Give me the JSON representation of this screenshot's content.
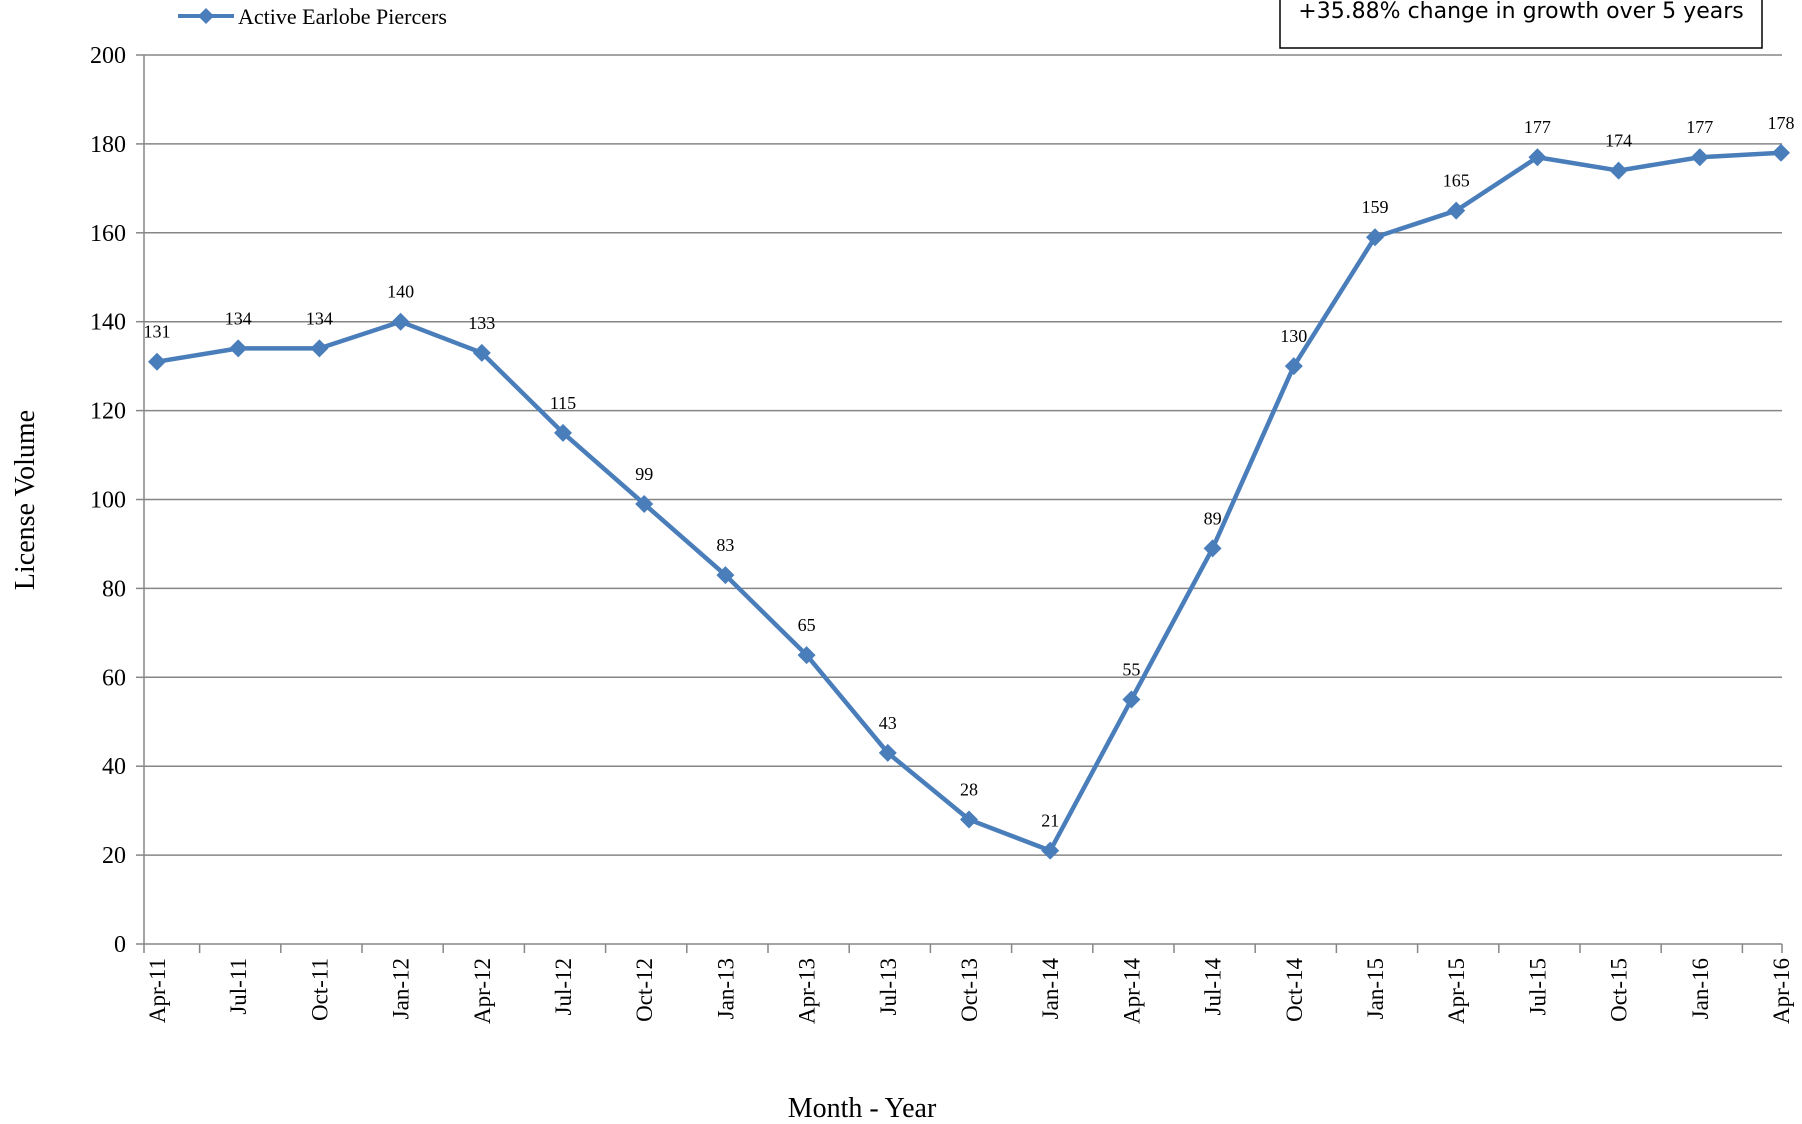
{
  "chart_data": {
    "type": "line",
    "title": "",
    "xlabel": "Month - Year",
    "ylabel": "License Volume",
    "ylim": [
      0,
      200
    ],
    "ytick_step": 20,
    "grid": true,
    "legend": {
      "position": "top-left",
      "entries": [
        "Active Earlobe Piercers"
      ]
    },
    "annotation": "+35.88% change in growth over 5 years",
    "categories": [
      "Apr-11",
      "Jul-11",
      "Oct-11",
      "Jan-12",
      "Apr-12",
      "Jul-12",
      "Oct-12",
      "Jan-13",
      "Apr-13",
      "Jul-13",
      "Oct-13",
      "Jan-14",
      "Apr-14",
      "Jul-14",
      "Oct-14",
      "Jan-15",
      "Apr-15",
      "Jul-15",
      "Oct-15",
      "Jan-16",
      "Apr-16"
    ],
    "series": [
      {
        "name": "Active Earlobe Piercers",
        "color": "#4a7ebb",
        "values": [
          131,
          134,
          134,
          140,
          133,
          115,
          99,
          83,
          65,
          43,
          28,
          21,
          55,
          89,
          130,
          159,
          165,
          177,
          174,
          177,
          178
        ]
      }
    ]
  }
}
